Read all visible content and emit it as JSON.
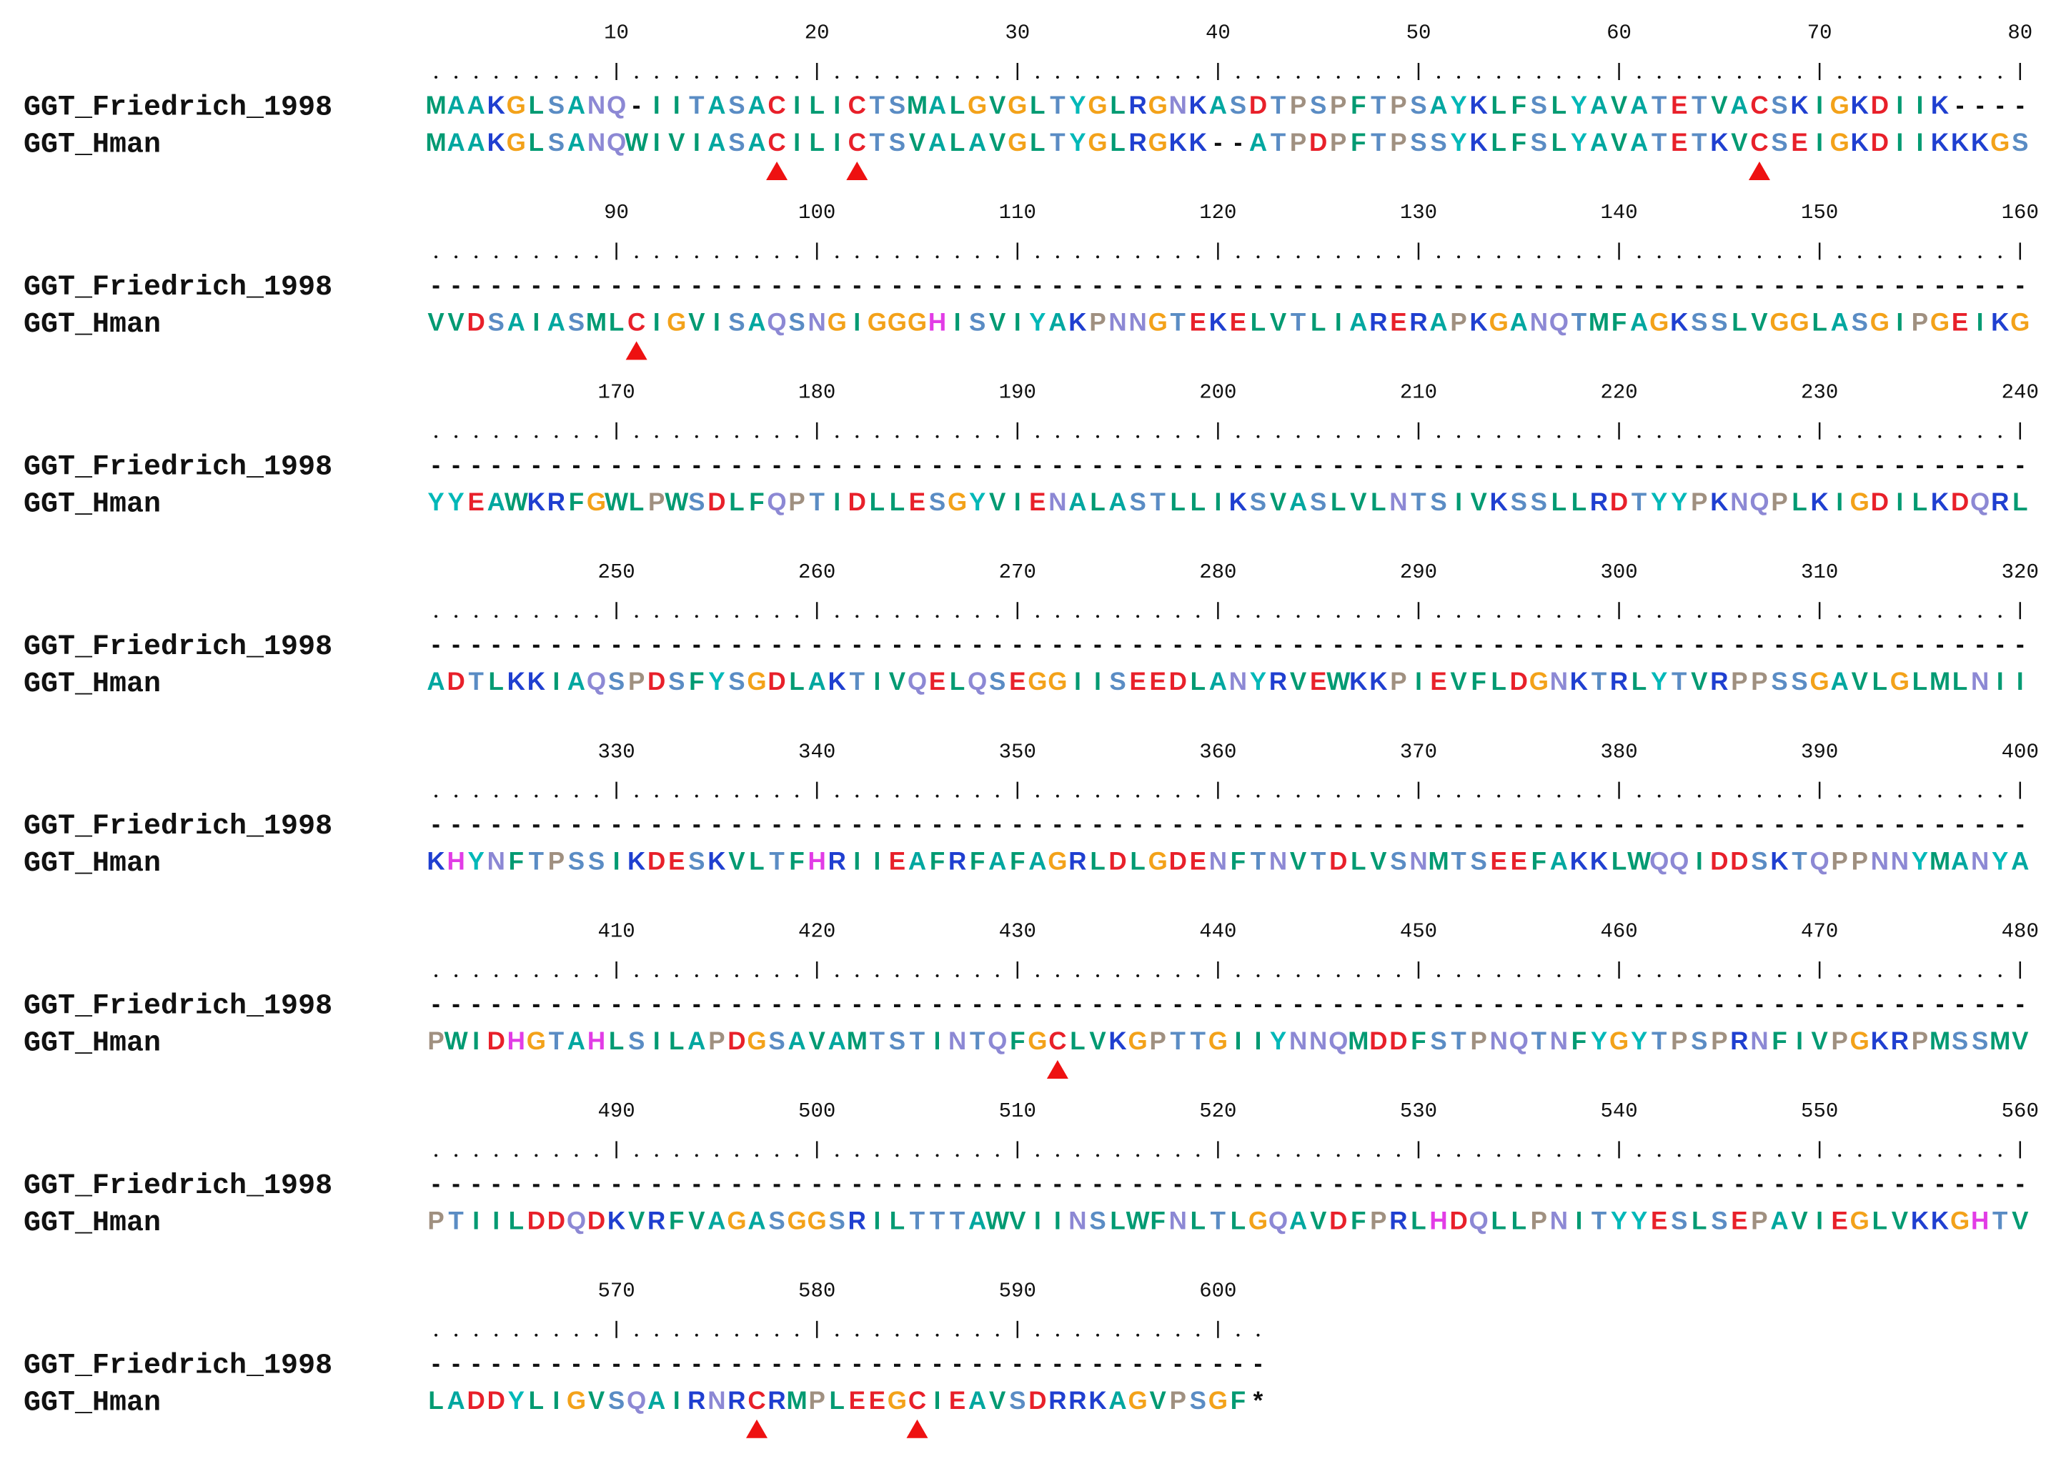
{
  "blocks": [
    {
      "ruler": [
        "10",
        "20",
        "30",
        "40",
        "50",
        "60",
        "70",
        "80"
      ],
      "rows": [
        {
          "name": "GGT_Friedrich_1998",
          "sequence": "MAAKGLSANQ-IITASACILICTSMALGVGLTYGLRGNKASDTPSPFTPSAYKLFSLYAVATETVACSKIGKDIIK----"
        },
        {
          "name": "GGT_Hman",
          "sequence": "MAAKGLSANQWIVIASACILICTSVALAVGLTYGLRGKK--ATPDPFTPSSYKLFSLYAVATETKVCSEIGKDIIKKKGS"
        }
      ]
    },
    {
      "ruler": [
        "90",
        "100",
        "110",
        "120",
        "130",
        "140",
        "150",
        "160"
      ],
      "rows": [
        {
          "name": "GGT_Friedrich_1998",
          "sequence": "--------------------------------------------------------------------------------"
        },
        {
          "name": "GGT_Hman",
          "sequence": "VVDSAIASMLCIGVISAQSNGIGGGHISVIYAKPNNGTEKELVTLIARERAPKGANQTMFAGKSSLVGGLASGIPGEIKG"
        }
      ]
    },
    {
      "ruler": [
        "170",
        "180",
        "190",
        "200",
        "210",
        "220",
        "230",
        "240"
      ],
      "rows": [
        {
          "name": "GGT_Friedrich_1998",
          "sequence": "--------------------------------------------------------------------------------"
        },
        {
          "name": "GGT_Hman",
          "sequence": "YYEAWKRFGWLPWSDLFQPTIDLLESGYVIENALASTLLIKSVASLVLNTSIVKSSLLRDTYYPKNQPLKIGDILKDQRL"
        }
      ]
    },
    {
      "ruler": [
        "250",
        "260",
        "270",
        "280",
        "290",
        "300",
        "310",
        "320"
      ],
      "rows": [
        {
          "name": "GGT_Friedrich_1998",
          "sequence": "--------------------------------------------------------------------------------"
        },
        {
          "name": "GGT_Hman",
          "sequence": "ADTLKKIAQSPDSFYSGDLAKTIVQELQSEGGIISEEDLANYRVEWKKPIEVFLDGNKTRLYTVRPPSSGAVLGLMLNII"
        }
      ]
    },
    {
      "ruler": [
        "330",
        "340",
        "350",
        "360",
        "370",
        "380",
        "390",
        "400"
      ],
      "rows": [
        {
          "name": "GGT_Friedrich_1998",
          "sequence": "--------------------------------------------------------------------------------"
        },
        {
          "name": "GGT_Hman",
          "sequence": "KHYNFTPSSIKDESKVLTFHRIIEAFRFAFAGRLDLGDENFTNVTDLVSNMTSEEFAKKLWQQIDDSKTQPPNNYMANYA"
        }
      ]
    },
    {
      "ruler": [
        "410",
        "420",
        "430",
        "440",
        "450",
        "460",
        "470",
        "480"
      ],
      "rows": [
        {
          "name": "GGT_Friedrich_1998",
          "sequence": "--------------------------------------------------------------------------------"
        },
        {
          "name": "GGT_Hman",
          "sequence": "PWIDHGTAHLSILAPDGSAVAMTSTINTQFGCLVKGPTTGIIYNNQMDDFSTPNQTNFYGYTPSPRNFIVPGKRPMSSMV"
        }
      ]
    },
    {
      "ruler": [
        "490",
        "500",
        "510",
        "520",
        "530",
        "540",
        "550",
        "560"
      ],
      "rows": [
        {
          "name": "GGT_Friedrich_1998",
          "sequence": "--------------------------------------------------------------------------------"
        },
        {
          "name": "GGT_Hman",
          "sequence": "PTIILDDQDKVRFVAGASGGSRILTTTAWVIINSLWFNLTLGQAVDFPRLHDQLLPNITYYESLSEPAVIEGLVKKGHTV"
        }
      ]
    },
    {
      "ruler": [
        "570",
        "580",
        "590",
        "600"
      ],
      "rows": [
        {
          "name": "GGT_Friedrich_1998",
          "sequence": "------------------------------------------"
        },
        {
          "name": "GGT_Hman",
          "sequence": "LADDYLIGVSQAIRNRCRMPLEEGCIEAVSDRRKAGVPSGF*"
        }
      ]
    }
  ]
}
